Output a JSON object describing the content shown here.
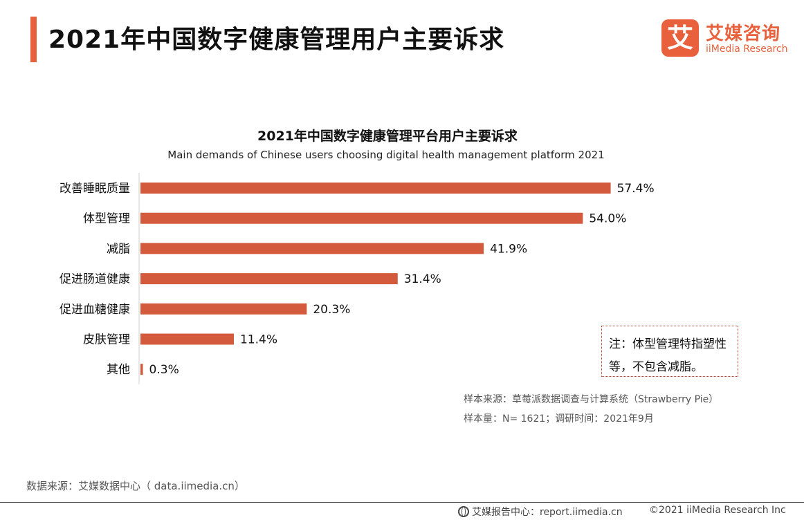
{
  "header": {
    "title": "2021年中国数字健康管理用户主要诉求",
    "logo_mark": "艾",
    "logo_cn": "艾媒咨询",
    "logo_en": "iiMedia Research"
  },
  "chart_data": {
    "type": "bar",
    "orientation": "horizontal",
    "title": "2021年中国数字健康管理平台用户主要诉求",
    "subtitle": "Main demands of Chinese users choosing digital health management platform 2021",
    "categories": [
      "改善睡眠质量",
      "体型管理",
      "减脂",
      "促进肠道健康",
      "促进血糖健康",
      "皮肤管理",
      "其他"
    ],
    "values": [
      57.4,
      54.0,
      41.9,
      31.4,
      20.3,
      11.4,
      0.3
    ],
    "data_labels": [
      "57.4%",
      "54.0%",
      "41.9%",
      "31.4%",
      "20.3%",
      "11.4%",
      "0.3%"
    ],
    "unit": "%",
    "xlim": [
      0,
      60
    ],
    "grid": false,
    "bar_color": "#d35a3c"
  },
  "note": {
    "text": "注：体型管理特指塑性等，不包含减脂。"
  },
  "sources": {
    "sample_source": "样本来源：草莓派数据调查与计算系统（Strawberry Pie）",
    "sample_size": "样本量：N= 1621；调研时间：2021年9月",
    "data_source": "数据来源：艾媒数据中心（ data.iimedia.cn）"
  },
  "footer": {
    "report": "艾媒报告中心：report.iimedia.cn",
    "copyright": "©2021  iiMedia Research  Inc"
  }
}
